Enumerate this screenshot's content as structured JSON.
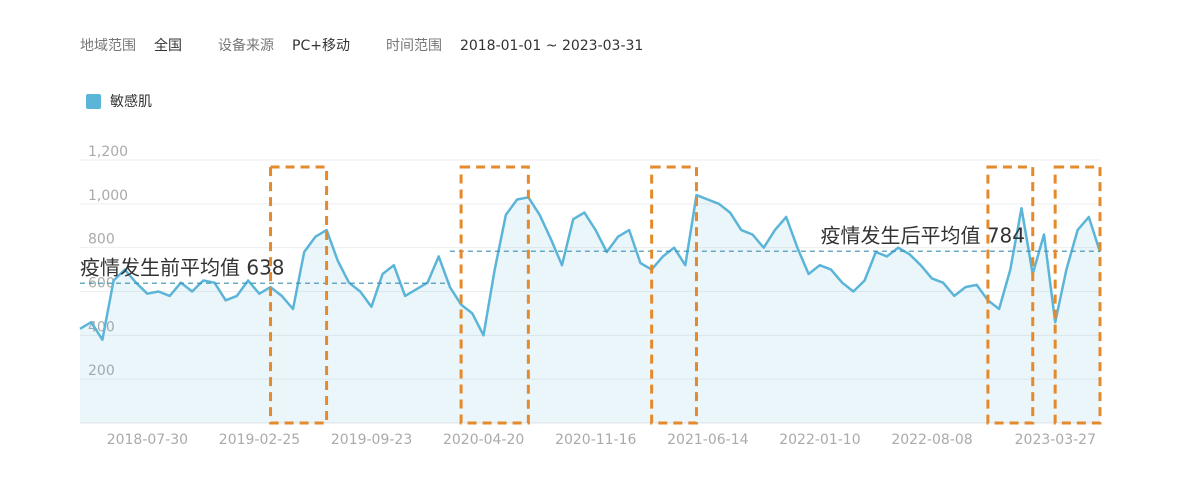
{
  "filters": [
    {
      "label": "地域范围",
      "value": "全国"
    },
    {
      "label": "设备来源",
      "value": "PC+移动"
    },
    {
      "label": "时间范围",
      "value": "2018-01-01 ~ 2023-03-31"
    }
  ],
  "chart_data": {
    "type": "area",
    "legend": "top-left",
    "grid": true,
    "series": [
      {
        "name": "敏感肌",
        "color": "#5bb5d8",
        "x": [
          "2018-01-01",
          "2018-01-22",
          "2018-02-12",
          "2018-03-05",
          "2018-03-26",
          "2018-04-16",
          "2018-05-07",
          "2018-05-28",
          "2018-06-18",
          "2018-07-09",
          "2018-07-30",
          "2018-08-20",
          "2018-09-10",
          "2018-10-01",
          "2018-10-22",
          "2018-11-12",
          "2018-12-03",
          "2018-12-24",
          "2019-01-14",
          "2019-02-04",
          "2019-02-25",
          "2019-03-18",
          "2019-04-08",
          "2019-04-29",
          "2019-05-20",
          "2019-06-10",
          "2019-07-01",
          "2019-07-22",
          "2019-08-12",
          "2019-09-02",
          "2019-09-23",
          "2019-10-14",
          "2019-11-04",
          "2019-11-25",
          "2019-12-16",
          "2020-01-06",
          "2020-01-27",
          "2020-02-17",
          "2020-03-09",
          "2020-03-30",
          "2020-04-20",
          "2020-05-11",
          "2020-06-01",
          "2020-06-22",
          "2020-07-13",
          "2020-08-03",
          "2020-08-24",
          "2020-09-14",
          "2020-10-05",
          "2020-10-26",
          "2020-11-16",
          "2020-12-07",
          "2020-12-28",
          "2021-01-18",
          "2021-02-08",
          "2021-03-01",
          "2021-03-22",
          "2021-04-12",
          "2021-05-03",
          "2021-05-24",
          "2021-06-14",
          "2021-07-05",
          "2021-07-26",
          "2021-08-16",
          "2021-09-06",
          "2021-09-27",
          "2021-10-18",
          "2021-11-08",
          "2021-11-29",
          "2021-12-20",
          "2022-01-10",
          "2022-01-31",
          "2022-02-21",
          "2022-03-14",
          "2022-04-04",
          "2022-04-25",
          "2022-05-16",
          "2022-06-06",
          "2022-06-27",
          "2022-07-18",
          "2022-08-08",
          "2022-08-29",
          "2022-09-19",
          "2022-10-10",
          "2022-10-31",
          "2022-11-21",
          "2022-12-12",
          "2023-01-02",
          "2023-01-23",
          "2023-02-13",
          "2023-03-06",
          "2023-03-27"
        ],
        "values": [
          430,
          460,
          380,
          650,
          700,
          640,
          590,
          600,
          580,
          640,
          600,
          650,
          640,
          560,
          580,
          650,
          590,
          620,
          580,
          520,
          780,
          850,
          880,
          740,
          640,
          600,
          530,
          680,
          720,
          580,
          610,
          640,
          760,
          620,
          540,
          500,
          400,
          700,
          950,
          1020,
          1030,
          950,
          840,
          720,
          930,
          960,
          880,
          780,
          850,
          880,
          730,
          700,
          760,
          800,
          720,
          1040,
          1020,
          1000,
          960,
          880,
          860,
          800,
          880,
          940,
          800,
          680,
          720,
          700,
          640,
          600,
          650,
          780,
          760,
          800,
          770,
          720,
          660,
          640,
          580,
          620,
          630,
          560,
          520,
          700,
          980,
          680,
          860,
          460,
          700,
          880,
          940,
          780
        ]
      }
    ],
    "xlim": [
      "2018-01-01",
      "2023-03-27"
    ],
    "xticks": [
      "2018-07-30",
      "2019-02-25",
      "2019-09-23",
      "2020-04-20",
      "2020-11-16",
      "2021-06-14",
      "2022-01-10",
      "2022-08-08",
      "2023-03-27"
    ],
    "ylim": [
      0,
      1200
    ],
    "yticks": [
      200,
      400,
      600,
      800,
      {
        "value": 1000,
        "label": "1,000"
      },
      {
        "value": 1200,
        "label": "1,200"
      }
    ],
    "reference_lines": [
      {
        "label": "疫情发生前平均值 638",
        "value": 638,
        "x_range": [
          "2018-01-01",
          "2019-11-25"
        ]
      },
      {
        "label": "疫情发生后平均值 784",
        "value": 784,
        "x_range": [
          "2019-11-25",
          "2023-03-27"
        ]
      }
    ],
    "highlight_ranges": [
      [
        "2018-12-24",
        "2019-04-08"
      ],
      [
        "2019-12-16",
        "2020-04-20"
      ],
      [
        "2020-12-07",
        "2021-03-01"
      ],
      [
        "2022-08-29",
        "2022-11-21"
      ],
      [
        "2023-01-02",
        "2023-03-27"
      ]
    ],
    "highlight_color": "#e58a2c"
  }
}
